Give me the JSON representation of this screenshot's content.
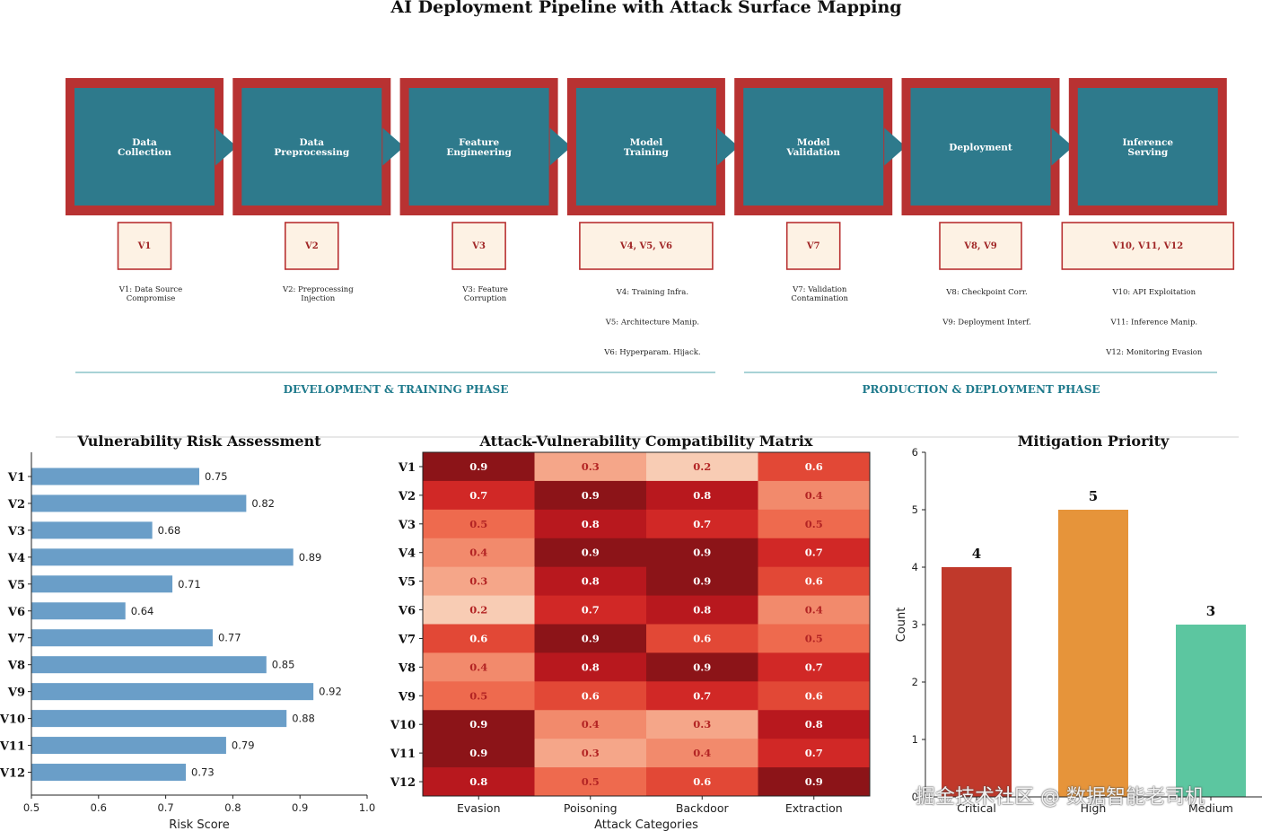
{
  "title": "AI Deployment Pipeline with Attack Surface Mapping",
  "pipeline": {
    "stages": [
      {
        "label": "Data\nCollection",
        "vuln_tag": "V1",
        "details": [
          "V1: Data Source\nCompromise"
        ]
      },
      {
        "label": "Data\nPreprocessing",
        "vuln_tag": "V2",
        "details": [
          "V2: Preprocessing\nInjection"
        ]
      },
      {
        "label": "Feature\nEngineering",
        "vuln_tag": "V3",
        "details": [
          "V3: Feature\nCorruption"
        ]
      },
      {
        "label": "Model\nTraining",
        "vuln_tag": "V4, V5, V6",
        "details": [
          "V4: Training Infra.",
          "V5: Architecture Manip.",
          "V6: Hyperparam. Hijack."
        ]
      },
      {
        "label": "Model\nValidation",
        "vuln_tag": "V7",
        "details": [
          "V7: Validation\nContamination"
        ]
      },
      {
        "label": "Deployment",
        "vuln_tag": "V8, V9",
        "details": [
          "V8: Checkpoint Corr.",
          "V9: Deployment Interf."
        ]
      },
      {
        "label": "Inference\nServing",
        "vuln_tag": "V10, V11, V12",
        "details": [
          "V10: API Exploitation",
          "V11: Inference Manip.",
          "V12: Monitoring Evasion"
        ]
      }
    ],
    "phases": [
      "DEVELOPMENT & TRAINING PHASE",
      "PRODUCTION & DEPLOYMENT PHASE"
    ]
  },
  "colors": {
    "stage_fill": "#2e7a8c",
    "stage_border": "#b83232",
    "tag_fill": "#fdf2e4",
    "tag_text": "#a02525",
    "phase_text": "#1f7a8c",
    "risk_bar": "#6a9ec8",
    "critical": "#c0392b",
    "high": "#e6943a",
    "medium": "#5cc6a0"
  },
  "chart_data": [
    {
      "type": "bar",
      "orientation": "horizontal",
      "title": "Vulnerability Risk Assessment",
      "xlabel": "Risk Score",
      "categories": [
        "V1",
        "V2",
        "V3",
        "V4",
        "V5",
        "V6",
        "V7",
        "V8",
        "V9",
        "V10",
        "V11",
        "V12"
      ],
      "values": [
        0.75,
        0.82,
        0.68,
        0.89,
        0.71,
        0.64,
        0.77,
        0.85,
        0.92,
        0.88,
        0.79,
        0.73
      ],
      "xlim": [
        0.5,
        1.0
      ],
      "xticks": [
        "0.5",
        "0.6",
        "0.7",
        "0.8",
        "0.9",
        "1.0"
      ]
    },
    {
      "type": "heatmap",
      "title": "Attack-Vulnerability Compatibility Matrix",
      "xlabel": "Attack Categories",
      "columns": [
        "Evasion",
        "Poisoning",
        "Backdoor",
        "Extraction"
      ],
      "rows": [
        "V1",
        "V2",
        "V3",
        "V4",
        "V5",
        "V6",
        "V7",
        "V8",
        "V9",
        "V10",
        "V11",
        "V12"
      ],
      "values": [
        [
          0.9,
          0.3,
          0.2,
          0.6
        ],
        [
          0.7,
          0.9,
          0.8,
          0.4
        ],
        [
          0.5,
          0.8,
          0.7,
          0.5
        ],
        [
          0.4,
          0.9,
          0.9,
          0.7
        ],
        [
          0.3,
          0.8,
          0.9,
          0.6
        ],
        [
          0.2,
          0.7,
          0.8,
          0.4
        ],
        [
          0.6,
          0.9,
          0.6,
          0.5
        ],
        [
          0.4,
          0.8,
          0.9,
          0.7
        ],
        [
          0.5,
          0.6,
          0.7,
          0.6
        ],
        [
          0.9,
          0.4,
          0.3,
          0.8
        ],
        [
          0.9,
          0.3,
          0.4,
          0.7
        ],
        [
          0.8,
          0.5,
          0.6,
          0.9
        ]
      ]
    },
    {
      "type": "bar",
      "title": "Mitigation Priority",
      "ylabel": "Count",
      "categories": [
        "Critical",
        "High",
        "Medium"
      ],
      "values": [
        4,
        5,
        3
      ],
      "ylim": [
        0,
        6
      ],
      "yticks": [
        "0",
        "1",
        "2",
        "3",
        "4",
        "5",
        "6"
      ]
    }
  ],
  "watermark": "掘金技术社区 @ 数据智能老司机"
}
